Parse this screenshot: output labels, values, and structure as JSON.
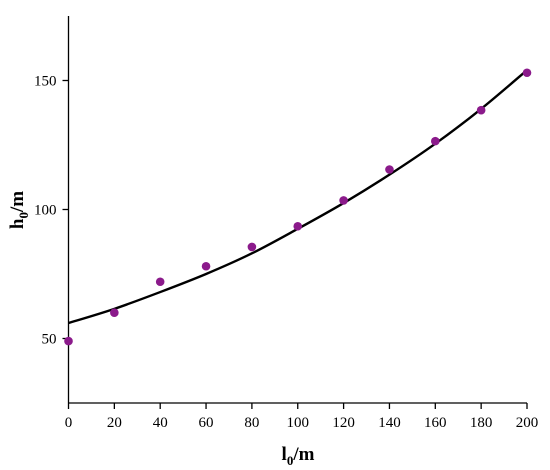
{
  "chart_data": {
    "type": "scatter",
    "title": "",
    "xlabel": {
      "main": "l",
      "sub": "0",
      "suffix": "/m"
    },
    "ylabel": {
      "main": "h",
      "sub": "0",
      "suffix": "/m"
    },
    "xlim": [
      0,
      200
    ],
    "ylim": [
      25,
      175
    ],
    "xticks": [
      0,
      20,
      40,
      60,
      80,
      100,
      120,
      140,
      160,
      180,
      200
    ],
    "yticks": [
      50,
      100,
      150
    ],
    "grid": false,
    "legend": "none",
    "series": [
      {
        "kind": "points",
        "color": "#8B1A8B",
        "x": [
          0,
          20,
          40,
          60,
          80,
          100,
          120,
          140,
          160,
          180,
          200
        ],
        "y": [
          49,
          60,
          72,
          78,
          85.5,
          93.5,
          103.5,
          115.5,
          126.5,
          138.5,
          153
        ]
      },
      {
        "kind": "fit-line",
        "color": "#000000",
        "x": [
          0,
          20,
          40,
          60,
          80,
          100,
          120,
          140,
          160,
          180,
          200
        ],
        "y": [
          56,
          61.5,
          68,
          75,
          83,
          92.5,
          102.5,
          113.5,
          125.5,
          139,
          154
        ]
      }
    ]
  }
}
